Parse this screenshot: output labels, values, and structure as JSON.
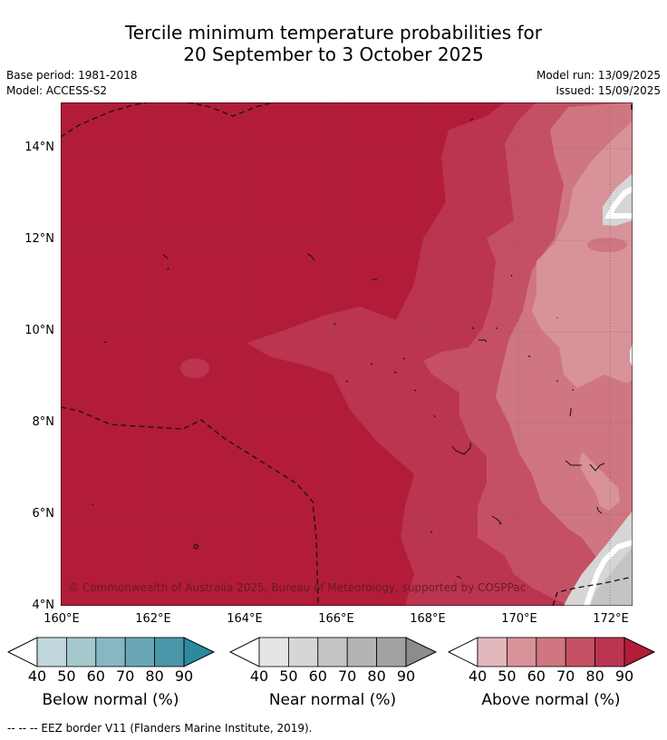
{
  "header": {
    "title_line1": "Tercile minimum temperature probabilities for",
    "title_line2": "20 September to 3 October 2025",
    "base_period": "Base period: 1981-2018",
    "model": "Model: ACCESS-S2",
    "model_run": "Model run: 13/09/2025",
    "issued": "Issued: 15/09/2025"
  },
  "map": {
    "lat_ticks": [
      "14°N",
      "12°N",
      "10°N",
      "8°N",
      "6°N",
      "4°N"
    ],
    "lon_ticks": [
      "160°E",
      "162°E",
      "164°E",
      "166°E",
      "168°E",
      "170°E",
      "172°E"
    ],
    "copyright": "© Commonwealth of Australia 2025, Bureau of Meteorology, supported by COSPPac",
    "colors": {
      "above_90": "#b21c38",
      "above_80": "#bb3450",
      "above_70": "#c55064",
      "above_60": "#d07680",
      "above_50": "#d8929a",
      "near_50": "#d6d6d6",
      "near_60": "#c4c4c4",
      "white": "#ffffff"
    }
  },
  "legends": [
    {
      "label": "Below normal (%)",
      "ticks": [
        "40",
        "50",
        "60",
        "70",
        "80",
        "90"
      ],
      "colors": [
        "#ffffff",
        "#bfd6dc",
        "#a5c8cf",
        "#88b7c2",
        "#6aa7b5",
        "#4997a8",
        "#2b8aa0"
      ]
    },
    {
      "label": "Near normal (%)",
      "ticks": [
        "40",
        "50",
        "60",
        "70",
        "80",
        "90"
      ],
      "colors": [
        "#ffffff",
        "#e4e4e4",
        "#d6d6d6",
        "#c4c4c4",
        "#b4b4b4",
        "#a2a2a2",
        "#8c8c8c"
      ]
    },
    {
      "label": "Above normal (%)",
      "ticks": [
        "40",
        "50",
        "60",
        "70",
        "80",
        "90"
      ],
      "colors": [
        "#ffffff",
        "#e2b8bd",
        "#d8929a",
        "#d07680",
        "#c55064",
        "#bb3450",
        "#b21c38"
      ]
    }
  ],
  "footnote": "--  --  -- EEZ border V11 (Flanders Marine Institute, 2019)."
}
